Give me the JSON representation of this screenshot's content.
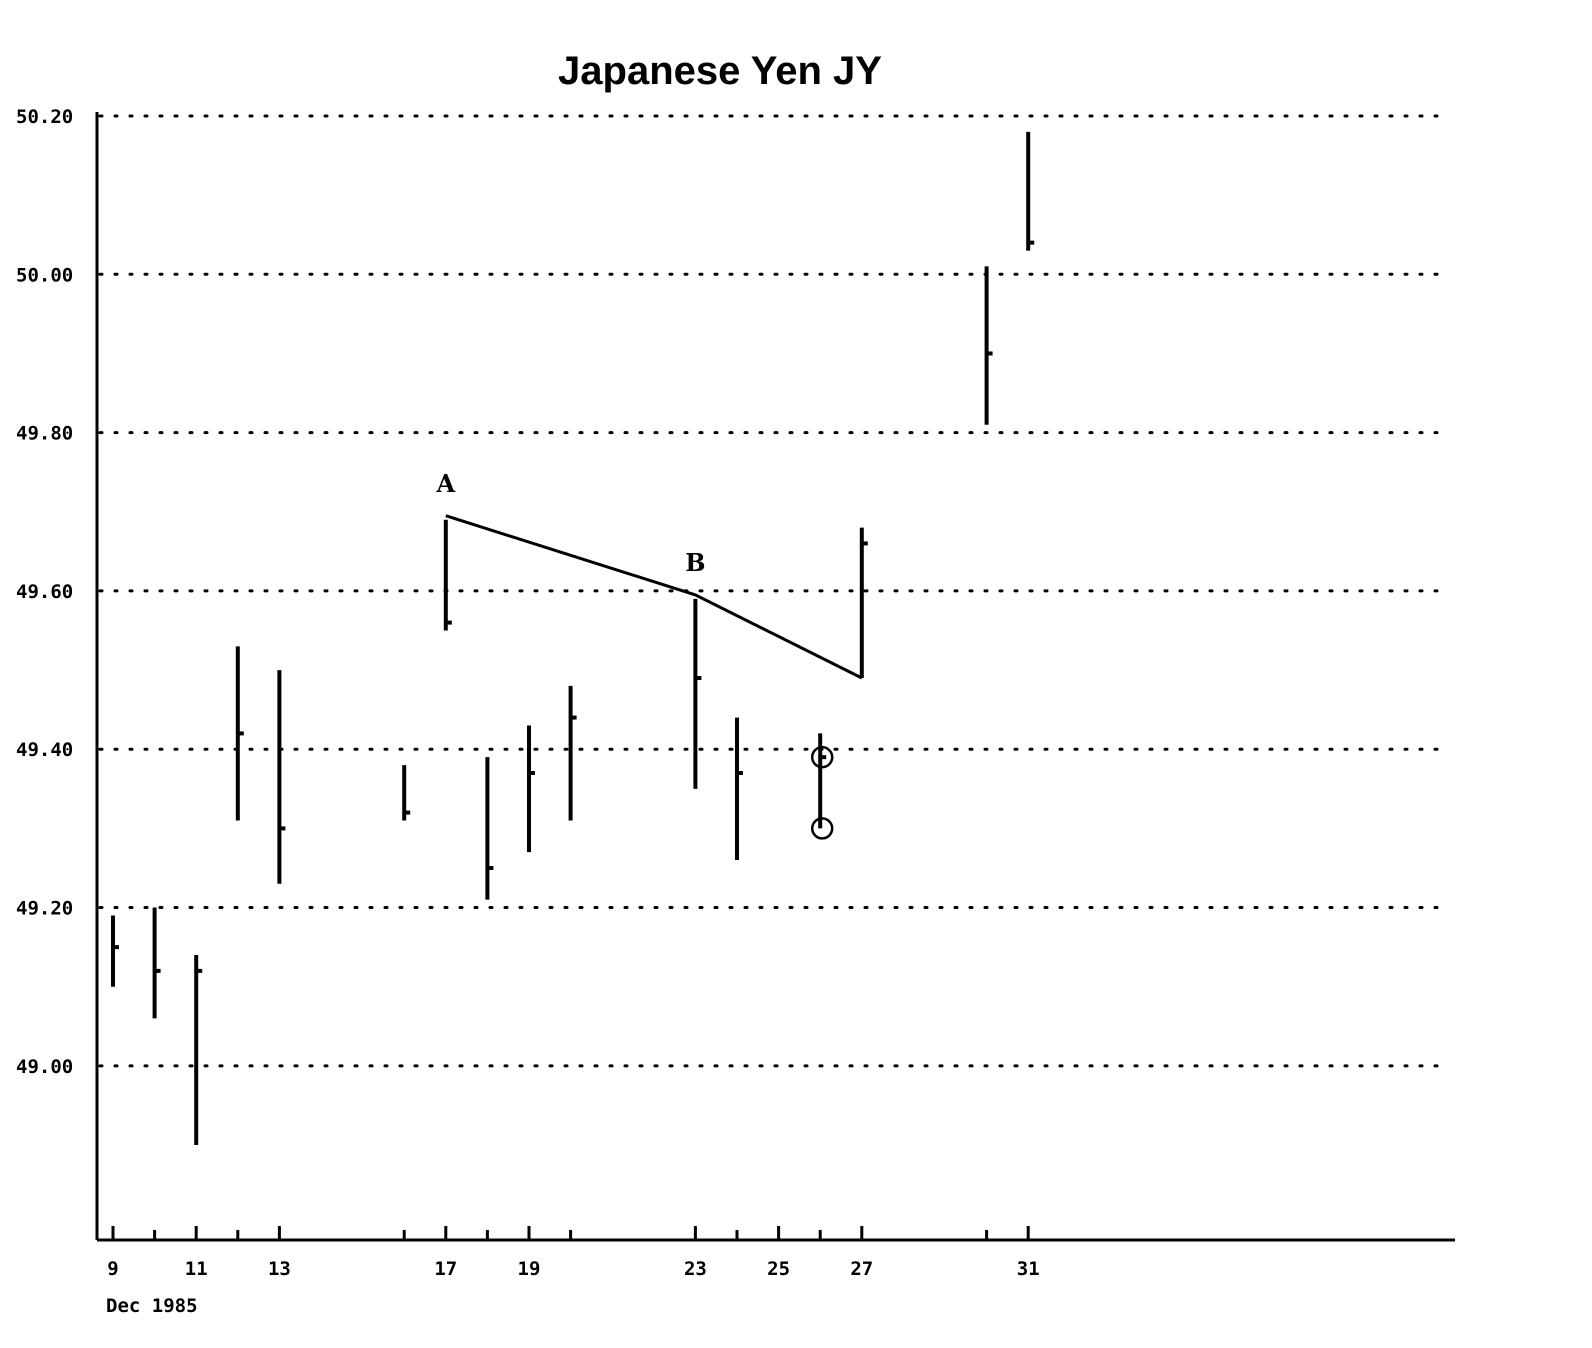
{
  "chart_data": {
    "type": "ohlc",
    "title": "Japanese Yen JY",
    "xlabel": "Dec 1985",
    "ylabel": "",
    "ylim": [
      48.78,
      50.2
    ],
    "y_ticks": [
      "50.20",
      "50.00",
      "49.80",
      "49.60",
      "49.40",
      "49.20",
      "49.00"
    ],
    "x_ticks": [
      "9",
      "11",
      "13",
      "17",
      "19",
      "23",
      "25",
      "27",
      "31"
    ],
    "grid": true,
    "bars": [
      {
        "date": "9",
        "high": 49.19,
        "low": 49.1,
        "close": 49.15
      },
      {
        "date": "10",
        "high": 49.2,
        "low": 49.06,
        "close": 49.12
      },
      {
        "date": "11",
        "high": 49.14,
        "low": 48.9,
        "close": 49.12
      },
      {
        "date": "12",
        "high": 49.53,
        "low": 49.31,
        "close": 49.42
      },
      {
        "date": "13",
        "high": 49.5,
        "low": 49.23,
        "close": 49.3
      },
      {
        "date": "16",
        "high": 49.38,
        "low": 49.31,
        "close": 49.32
      },
      {
        "date": "17",
        "high": 49.69,
        "low": 49.55,
        "close": 49.56
      },
      {
        "date": "18",
        "high": 49.39,
        "low": 49.21,
        "close": 49.25
      },
      {
        "date": "19",
        "high": 49.43,
        "low": 49.27,
        "close": 49.37
      },
      {
        "date": "20",
        "high": 49.48,
        "low": 49.31,
        "close": 49.44
      },
      {
        "date": "23",
        "high": 49.59,
        "low": 49.35,
        "close": 49.49
      },
      {
        "date": "24",
        "high": 49.44,
        "low": 49.26,
        "close": 49.37
      },
      {
        "date": "26",
        "high": 49.42,
        "low": 49.3,
        "close": 49.39
      },
      {
        "date": "27",
        "high": 49.68,
        "low": 49.49,
        "close": 49.66
      },
      {
        "date": "30",
        "high": 50.01,
        "low": 49.81,
        "close": 49.9
      },
      {
        "date": "31",
        "high": 50.18,
        "low": 50.03,
        "close": 50.04
      }
    ],
    "trendline": [
      {
        "date": "17",
        "price": 49.695
      },
      {
        "date": "23",
        "price": 49.595
      },
      {
        "date": "27",
        "price": 49.49
      }
    ],
    "annotations": [
      {
        "label": "A",
        "date": "17",
        "price": 49.72
      },
      {
        "label": "B",
        "date": "23",
        "price": 49.62
      }
    ],
    "circled_points": [
      {
        "date": "26",
        "price": 49.39
      },
      {
        "date": "26",
        "price": 49.3
      }
    ]
  }
}
